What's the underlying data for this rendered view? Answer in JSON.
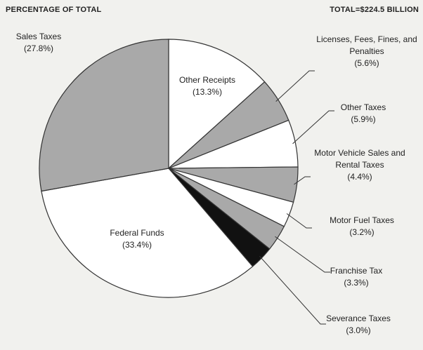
{
  "chart_data": {
    "type": "pie",
    "title": "PERCENTAGE OF TOTAL",
    "subtitle": "TOTAL=$224.5 BILLION",
    "categories": [
      "Other Receipts",
      "Licenses, Fees, Fines, and Penalties",
      "Other Taxes",
      "Motor Vehicle Sales and Rental Taxes",
      "Motor Fuel Taxes",
      "Franchise Tax",
      "Severance Taxes",
      "Federal Funds",
      "Sales Taxes"
    ],
    "values": [
      13.3,
      5.6,
      5.9,
      4.4,
      3.2,
      3.3,
      3.0,
      33.4,
      27.8
    ],
    "value_labels": [
      "(13.3%)",
      "(5.6%)",
      "(5.9%)",
      "(4.4%)",
      "(3.2%)",
      "(3.3%)",
      "(3.0%)",
      "(33.4%)",
      "(27.8%)"
    ],
    "colors": [
      "#ffffff",
      "#a9a9a9",
      "#ffffff",
      "#a9a9a9",
      "#ffffff",
      "#a9a9a9",
      "#111111",
      "#ffffff",
      "#a9a9a9"
    ]
  }
}
